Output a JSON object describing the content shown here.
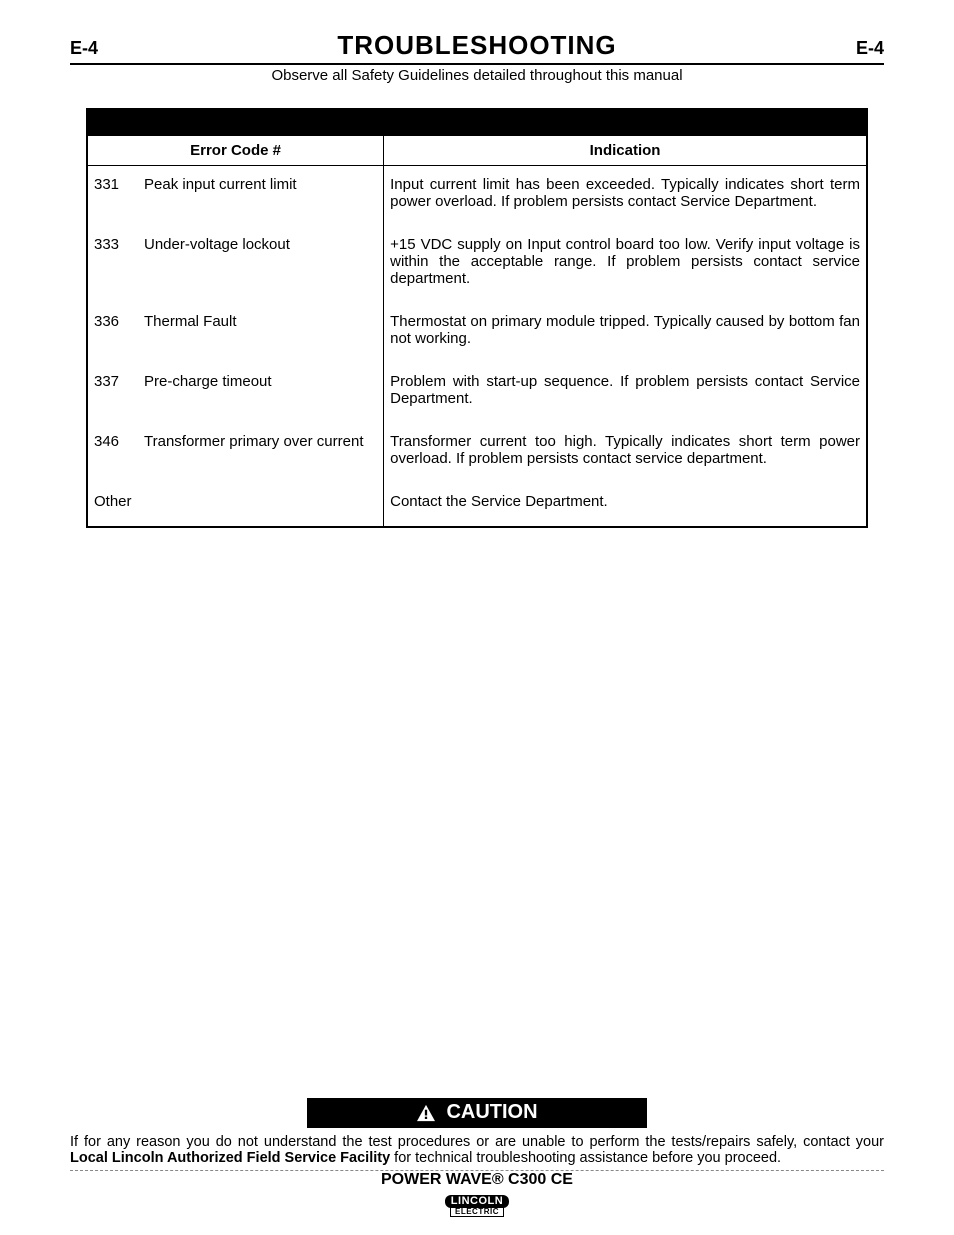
{
  "page": {
    "num_left": "E-4",
    "num_right": "E-4",
    "title": "TROUBLESHOOTING",
    "subtitle": "Observe all Safety Guidelines detailed throughout this manual"
  },
  "table": {
    "header_code": "Error Code #",
    "header_indication": "Indication",
    "rows": [
      {
        "code": "331",
        "name": "Peak input current limit",
        "indication": "Input current limit has been exceeded. Typically indicates short term power overload. If problem persists contact Service Department."
      },
      {
        "code": "333",
        "name": "Under-voltage lockout",
        "indication": "+15 VDC supply on Input control board too low. Verify input voltage is within the acceptable range. If problem persists contact service department."
      },
      {
        "code": "336",
        "name": "Thermal Fault",
        "indication": "Thermostat on primary module tripped. Typically caused by bottom fan not working."
      },
      {
        "code": "337",
        "name": "Pre-charge timeout",
        "indication": "Problem with start-up sequence. If problem persists contact Service Department."
      },
      {
        "code": "346",
        "name": "Transformer primary over current",
        "indication": "Transformer current too high. Typically indicates short term power overload. If problem persists contact service department."
      },
      {
        "code": "Other",
        "name": "",
        "indication": "Contact the Service Department."
      }
    ]
  },
  "caution": {
    "label": "CAUTION",
    "text_pre": "If for any reason you do not understand the test procedures or are unable to perform the tests/repairs safely, contact your ",
    "text_bold": "Local  Lincoln Authorized Field Service Facility",
    "text_post": " for technical troubleshooting assistance before you proceed."
  },
  "footer": {
    "product": "POWER WAVE® C300 CE",
    "logo_top": "LINCOLN",
    "logo_bot": "ELECTRIC"
  }
}
